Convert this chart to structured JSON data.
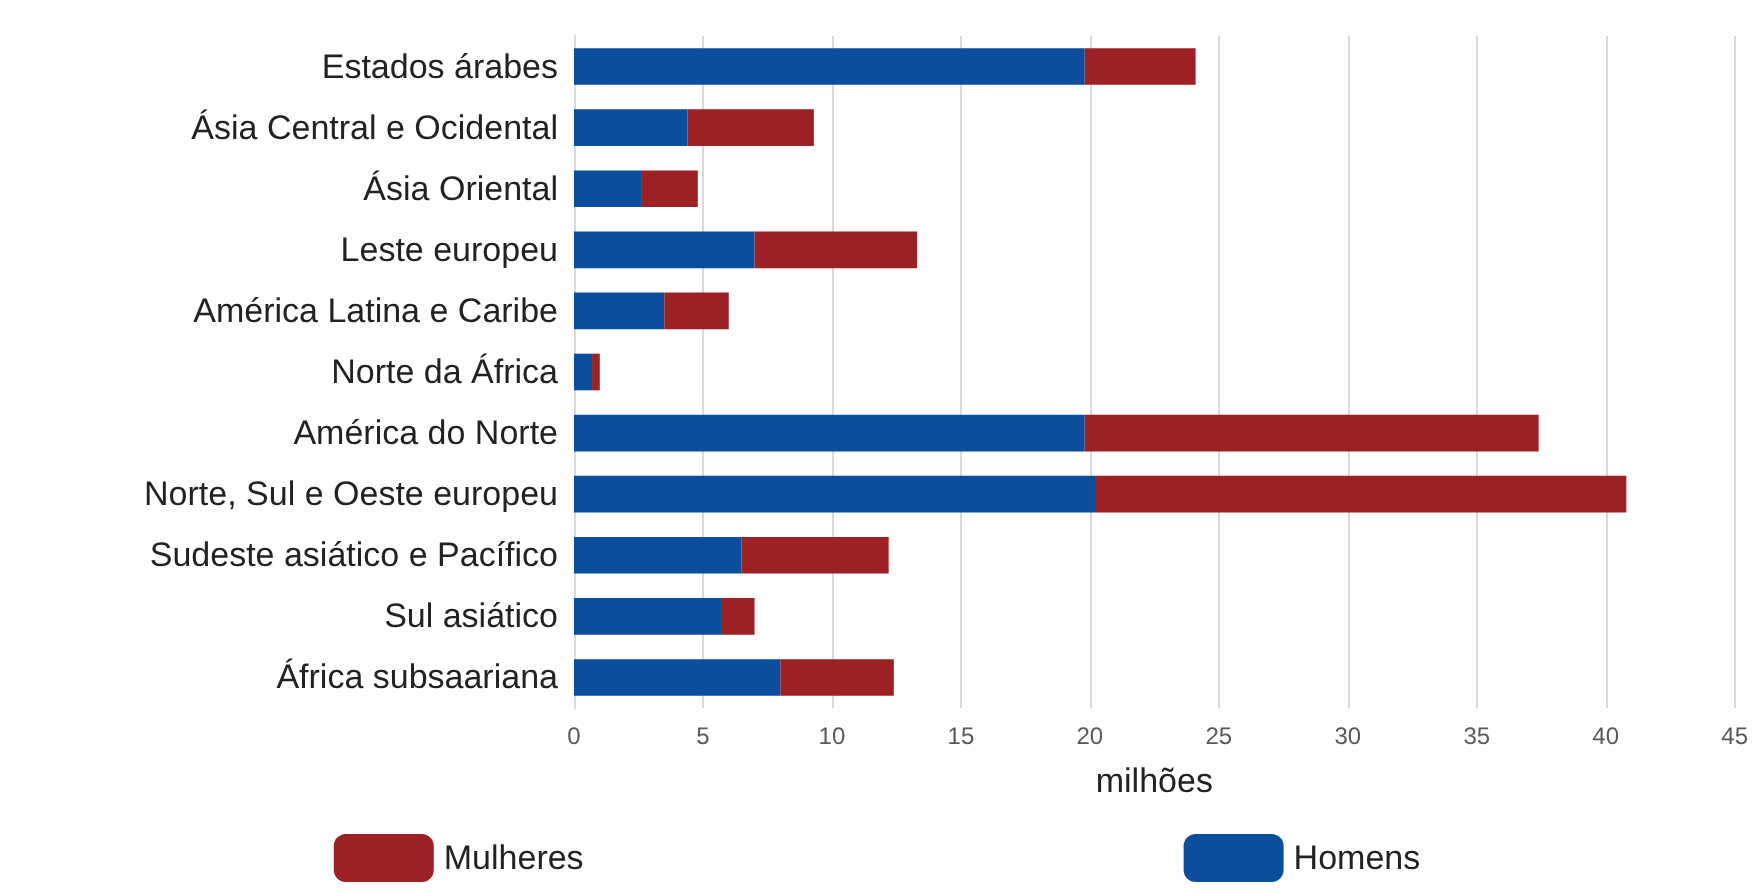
{
  "chart_data": {
    "type": "bar",
    "orientation": "horizontal",
    "stacked": true,
    "xlabel": "milhões",
    "categories": [
      "Estados árabes",
      "Ásia Central e Ocidental",
      "Ásia Oriental",
      "Leste europeu",
      "América Latina e Caribe",
      "Norte da África",
      "América do Norte",
      "Norte, Sul e Oeste europeu",
      "Sudeste asiático e Pacífico",
      "Sul asiático",
      "África subsaariana"
    ],
    "series": [
      {
        "name": "Homens",
        "color": "#0b4f9c",
        "values": [
          19.8,
          4.4,
          2.6,
          7.0,
          3.5,
          0.7,
          19.8,
          20.2,
          6.5,
          5.7,
          8.0
        ]
      },
      {
        "name": "Mulheres",
        "color": "#9b2124",
        "values": [
          4.3,
          4.9,
          2.2,
          6.3,
          2.5,
          0.3,
          17.6,
          20.6,
          5.7,
          1.3,
          4.4
        ]
      }
    ],
    "xlim": [
      0,
      45
    ],
    "xticks": [
      0,
      5,
      10,
      15,
      20,
      25,
      30,
      35,
      40,
      45
    ],
    "grid": "x",
    "legend": "bottom"
  }
}
